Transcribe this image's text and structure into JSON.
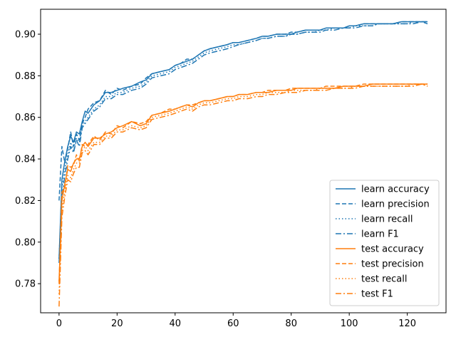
{
  "chart_data": {
    "type": "line",
    "title": "",
    "xlabel": "",
    "ylabel": "",
    "xlim": [
      -6.35,
      133.35
    ],
    "ylim": [
      0.766,
      0.912
    ],
    "xticks": [
      0,
      20,
      40,
      60,
      80,
      100,
      120
    ],
    "yticks": [
      0.78,
      0.8,
      0.82,
      0.84,
      0.86,
      0.88,
      0.9
    ],
    "ytick_labels": [
      "0.78",
      "0.80",
      "0.82",
      "0.84",
      "0.86",
      "0.88",
      "0.90"
    ],
    "grid": false,
    "legend_position": "bottom-right",
    "x": [
      0,
      1,
      2,
      3,
      4,
      5,
      6,
      7,
      8,
      9,
      10,
      12,
      14,
      16,
      18,
      20,
      22,
      25,
      28,
      30,
      32,
      35,
      38,
      40,
      42,
      44,
      46,
      48,
      50,
      52,
      55,
      58,
      60,
      62,
      65,
      68,
      70,
      72,
      75,
      78,
      80,
      82,
      85,
      88,
      90,
      92,
      95,
      98,
      100,
      102,
      105,
      108,
      110,
      112,
      115,
      118,
      120,
      122,
      125,
      127
    ],
    "series": [
      {
        "name": "learn accuracy",
        "color": "#1f77b4",
        "dash": "solid",
        "values": [
          0.792,
          0.83,
          0.839,
          0.846,
          0.851,
          0.848,
          0.853,
          0.852,
          0.858,
          0.863,
          0.862,
          0.866,
          0.868,
          0.872,
          0.872,
          0.873,
          0.874,
          0.875,
          0.877,
          0.878,
          0.881,
          0.882,
          0.883,
          0.885,
          0.886,
          0.887,
          0.888,
          0.89,
          0.892,
          0.893,
          0.894,
          0.895,
          0.896,
          0.896,
          0.897,
          0.898,
          0.899,
          0.899,
          0.9,
          0.9,
          0.9,
          0.901,
          0.902,
          0.902,
          0.902,
          0.903,
          0.903,
          0.903,
          0.904,
          0.904,
          0.905,
          0.905,
          0.905,
          0.905,
          0.905,
          0.906,
          0.906,
          0.906,
          0.906,
          0.906
        ]
      },
      {
        "name": "learn precision",
        "color": "#1f77b4",
        "dash": "dashed",
        "values": [
          0.82,
          0.846,
          0.838,
          0.845,
          0.853,
          0.846,
          0.852,
          0.849,
          0.857,
          0.86,
          0.864,
          0.867,
          0.868,
          0.873,
          0.871,
          0.874,
          0.873,
          0.875,
          0.876,
          0.879,
          0.881,
          0.882,
          0.883,
          0.885,
          0.886,
          0.888,
          0.888,
          0.89,
          0.892,
          0.893,
          0.894,
          0.895,
          0.896,
          0.896,
          0.897,
          0.898,
          0.899,
          0.899,
          0.9,
          0.9,
          0.901,
          0.901,
          0.902,
          0.902,
          0.902,
          0.903,
          0.903,
          0.903,
          0.904,
          0.904,
          0.905,
          0.905,
          0.905,
          0.905,
          0.905,
          0.906,
          0.906,
          0.906,
          0.906,
          0.906
        ]
      },
      {
        "name": "learn recall",
        "color": "#1f77b4",
        "dash": "dotted",
        "values": [
          0.792,
          0.826,
          0.835,
          0.842,
          0.848,
          0.844,
          0.85,
          0.848,
          0.856,
          0.858,
          0.86,
          0.864,
          0.866,
          0.87,
          0.87,
          0.872,
          0.872,
          0.874,
          0.875,
          0.877,
          0.88,
          0.881,
          0.882,
          0.884,
          0.885,
          0.886,
          0.887,
          0.889,
          0.891,
          0.892,
          0.893,
          0.894,
          0.895,
          0.895,
          0.896,
          0.897,
          0.898,
          0.898,
          0.899,
          0.899,
          0.9,
          0.9,
          0.901,
          0.901,
          0.902,
          0.902,
          0.903,
          0.903,
          0.903,
          0.904,
          0.904,
          0.904,
          0.905,
          0.905,
          0.905,
          0.905,
          0.905,
          0.906,
          0.906,
          0.906
        ]
      },
      {
        "name": "learn F1",
        "color": "#1f77b4",
        "dash": "dashdot",
        "values": [
          0.79,
          0.822,
          0.832,
          0.84,
          0.846,
          0.843,
          0.849,
          0.846,
          0.855,
          0.857,
          0.859,
          0.863,
          0.865,
          0.869,
          0.869,
          0.871,
          0.871,
          0.873,
          0.874,
          0.876,
          0.879,
          0.88,
          0.881,
          0.883,
          0.884,
          0.885,
          0.886,
          0.888,
          0.89,
          0.891,
          0.892,
          0.893,
          0.894,
          0.895,
          0.896,
          0.897,
          0.898,
          0.898,
          0.899,
          0.899,
          0.9,
          0.9,
          0.901,
          0.901,
          0.901,
          0.902,
          0.902,
          0.903,
          0.903,
          0.903,
          0.904,
          0.904,
          0.905,
          0.905,
          0.905,
          0.905,
          0.905,
          0.905,
          0.906,
          0.905
        ]
      },
      {
        "name": "test accuracy",
        "color": "#ff7f0e",
        "dash": "solid",
        "values": [
          0.781,
          0.82,
          0.828,
          0.835,
          0.834,
          0.838,
          0.84,
          0.84,
          0.846,
          0.848,
          0.846,
          0.85,
          0.85,
          0.852,
          0.853,
          0.855,
          0.856,
          0.858,
          0.856,
          0.857,
          0.861,
          0.862,
          0.863,
          0.864,
          0.865,
          0.866,
          0.865,
          0.867,
          0.868,
          0.868,
          0.869,
          0.87,
          0.87,
          0.871,
          0.871,
          0.872,
          0.872,
          0.872,
          0.873,
          0.873,
          0.873,
          0.874,
          0.874,
          0.874,
          0.874,
          0.874,
          0.874,
          0.875,
          0.875,
          0.875,
          0.875,
          0.876,
          0.876,
          0.876,
          0.876,
          0.876,
          0.876,
          0.876,
          0.876,
          0.876
        ]
      },
      {
        "name": "test precision",
        "color": "#ff7f0e",
        "dash": "dashed",
        "values": [
          0.78,
          0.824,
          0.826,
          0.837,
          0.836,
          0.837,
          0.842,
          0.839,
          0.847,
          0.846,
          0.847,
          0.851,
          0.849,
          0.853,
          0.852,
          0.856,
          0.855,
          0.858,
          0.857,
          0.858,
          0.861,
          0.862,
          0.864,
          0.864,
          0.865,
          0.866,
          0.866,
          0.867,
          0.868,
          0.868,
          0.869,
          0.87,
          0.87,
          0.871,
          0.871,
          0.872,
          0.872,
          0.873,
          0.873,
          0.873,
          0.874,
          0.874,
          0.874,
          0.874,
          0.874,
          0.875,
          0.875,
          0.875,
          0.875,
          0.875,
          0.876,
          0.876,
          0.876,
          0.876,
          0.876,
          0.876,
          0.876,
          0.876,
          0.876,
          0.876
        ]
      },
      {
        "name": "test recall",
        "color": "#ff7f0e",
        "dash": "dotted",
        "values": [
          0.775,
          0.816,
          0.824,
          0.832,
          0.831,
          0.835,
          0.838,
          0.838,
          0.844,
          0.846,
          0.844,
          0.848,
          0.848,
          0.851,
          0.851,
          0.854,
          0.854,
          0.856,
          0.855,
          0.856,
          0.86,
          0.861,
          0.862,
          0.863,
          0.864,
          0.865,
          0.864,
          0.866,
          0.867,
          0.867,
          0.868,
          0.869,
          0.869,
          0.87,
          0.87,
          0.871,
          0.871,
          0.872,
          0.872,
          0.872,
          0.873,
          0.873,
          0.873,
          0.873,
          0.874,
          0.874,
          0.874,
          0.874,
          0.874,
          0.875,
          0.875,
          0.875,
          0.875,
          0.875,
          0.875,
          0.875,
          0.875,
          0.876,
          0.876,
          0.875
        ]
      },
      {
        "name": "test F1",
        "color": "#ff7f0e",
        "dash": "dashdot",
        "values": [
          0.769,
          0.812,
          0.822,
          0.83,
          0.829,
          0.833,
          0.836,
          0.836,
          0.843,
          0.844,
          0.842,
          0.847,
          0.847,
          0.85,
          0.85,
          0.853,
          0.853,
          0.855,
          0.854,
          0.855,
          0.859,
          0.86,
          0.861,
          0.862,
          0.863,
          0.864,
          0.863,
          0.865,
          0.866,
          0.866,
          0.867,
          0.868,
          0.868,
          0.869,
          0.869,
          0.87,
          0.87,
          0.871,
          0.871,
          0.872,
          0.872,
          0.872,
          0.873,
          0.873,
          0.873,
          0.873,
          0.874,
          0.874,
          0.874,
          0.874,
          0.875,
          0.875,
          0.875,
          0.875,
          0.875,
          0.875,
          0.875,
          0.875,
          0.876,
          0.875
        ]
      }
    ]
  }
}
